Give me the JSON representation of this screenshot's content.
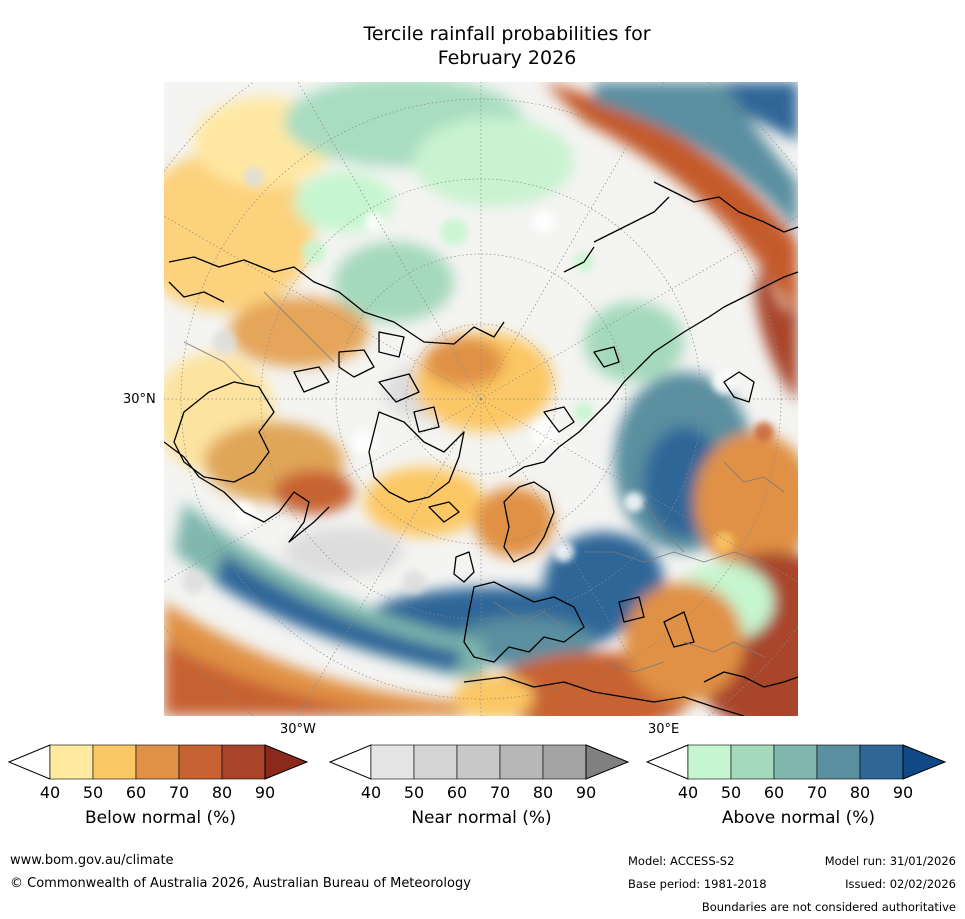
{
  "title_line1": "Tercile rainfall probabilities for",
  "title_line2": "February 2026",
  "map": {
    "projection": "north-polar-stereographic",
    "labels": {
      "lat": "30°N",
      "lon_west": "30°W",
      "lon_east": "30°E"
    }
  },
  "colorbars": [
    {
      "label": "Below normal (%)",
      "ticks": [
        "40",
        "50",
        "60",
        "70",
        "80",
        "90"
      ],
      "colors": [
        "#ffffff",
        "#ffeaa0",
        "#fcc765",
        "#e09145",
        "#c76232",
        "#a9442a",
        "#8a2a1d"
      ]
    },
    {
      "label": "Near normal (%)",
      "ticks": [
        "40",
        "50",
        "60",
        "70",
        "80",
        "90"
      ],
      "colors": [
        "#ffffff",
        "#e4e4e4",
        "#d4d4d4",
        "#c8c8c8",
        "#b7b7b7",
        "#a3a3a3",
        "#808080"
      ]
    },
    {
      "label": "Above normal (%)",
      "ticks": [
        "40",
        "50",
        "60",
        "70",
        "80",
        "90"
      ],
      "colors": [
        "#ffffff",
        "#c6f6cf",
        "#a4d9bc",
        "#7fb7ae",
        "#5a8fa0",
        "#2f6698",
        "#0f4a86"
      ]
    }
  ],
  "footer": {
    "url": "www.bom.gov.au/climate",
    "copyright": "© Commonwealth of Australia 2026, Australian Bureau of Meteorology",
    "model": "Model: ACCESS-S2",
    "model_run": "Model run: 31/01/2026",
    "base_period": "Base period: 1981-2018",
    "issued": "Issued: 02/02/2026",
    "disclaimer": "Boundaries are not considered authoritative"
  }
}
